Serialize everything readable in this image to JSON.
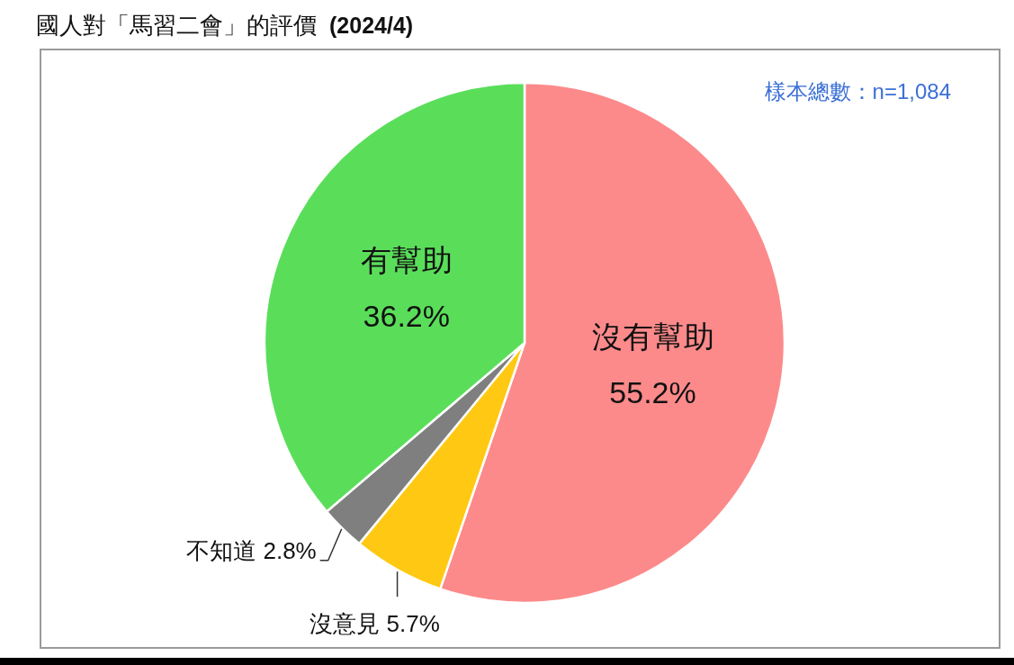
{
  "chart_data": {
    "type": "pie",
    "title": "國人對「馬習二會」的評價",
    "subtitle": "(2024/4)",
    "categories": [
      "沒有幫助",
      "沒意見",
      "不知道",
      "有幫助"
    ],
    "values": [
      55.2,
      5.7,
      2.8,
      36.2
    ],
    "colors": [
      "#fd8a8a",
      "#ffc913",
      "#7f7f7f",
      "#5ade5a"
    ],
    "value_labels": [
      "55.2%",
      "5.7%",
      "2.8%",
      "36.2%"
    ],
    "annotations": [
      "樣本總數：n=1,084"
    ]
  }
}
